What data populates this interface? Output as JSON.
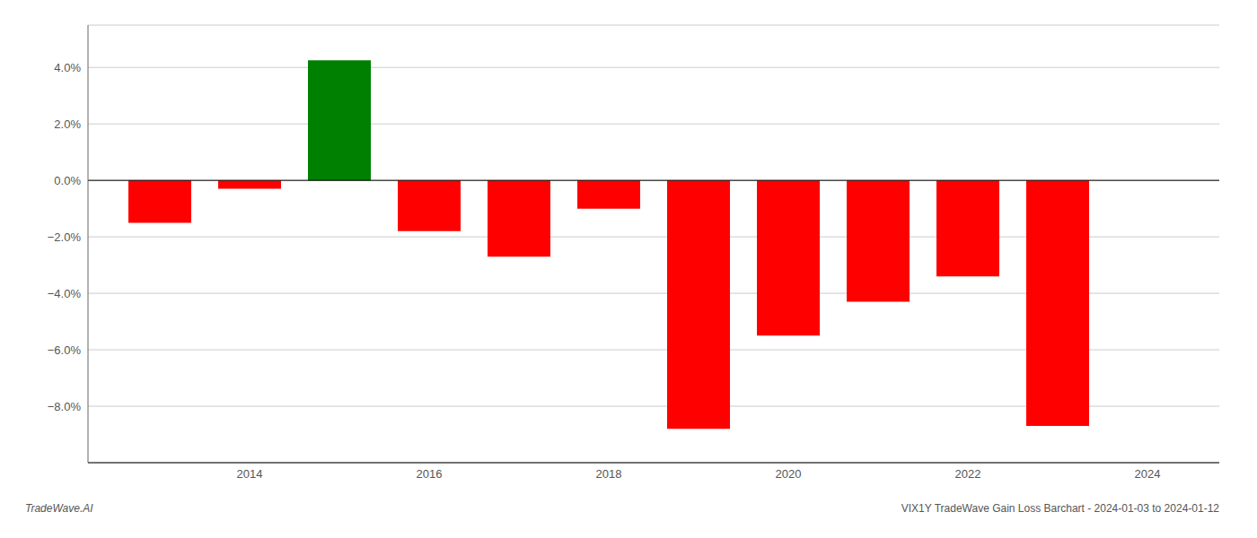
{
  "chart_data": {
    "type": "bar",
    "x": [
      2013,
      2014,
      2015,
      2016,
      2017,
      2018,
      2019,
      2020,
      2021,
      2022,
      2023
    ],
    "values": [
      -1.5,
      -0.3,
      4.25,
      -1.8,
      -2.7,
      -1.0,
      -8.8,
      -5.5,
      -4.3,
      -3.4,
      -8.7
    ],
    "colors": [
      "#ff0000",
      "#ff0000",
      "#008000",
      "#ff0000",
      "#ff0000",
      "#ff0000",
      "#ff0000",
      "#ff0000",
      "#ff0000",
      "#ff0000",
      "#ff0000"
    ],
    "xlim": [
      2012.2,
      2024.8
    ],
    "xticks": [
      2014,
      2016,
      2018,
      2020,
      2022,
      2024
    ],
    "ylim": [
      -10.0,
      5.5
    ],
    "yticks": [
      {
        "value": -8.0,
        "label": "−8.0%"
      },
      {
        "value": -6.0,
        "label": "−6.0%"
      },
      {
        "value": -4.0,
        "label": "−4.0%"
      },
      {
        "value": -2.0,
        "label": "−2.0%"
      },
      {
        "value": 0.0,
        "label": "0.0%"
      },
      {
        "value": 2.0,
        "label": "2.0%"
      },
      {
        "value": 4.0,
        "label": "4.0%"
      }
    ],
    "grid": true,
    "annotations": [
      "TradeWave.AI",
      "VIX1Y TradeWave Gain Loss Barchart - 2024-01-03 to 2024-01-12"
    ]
  }
}
